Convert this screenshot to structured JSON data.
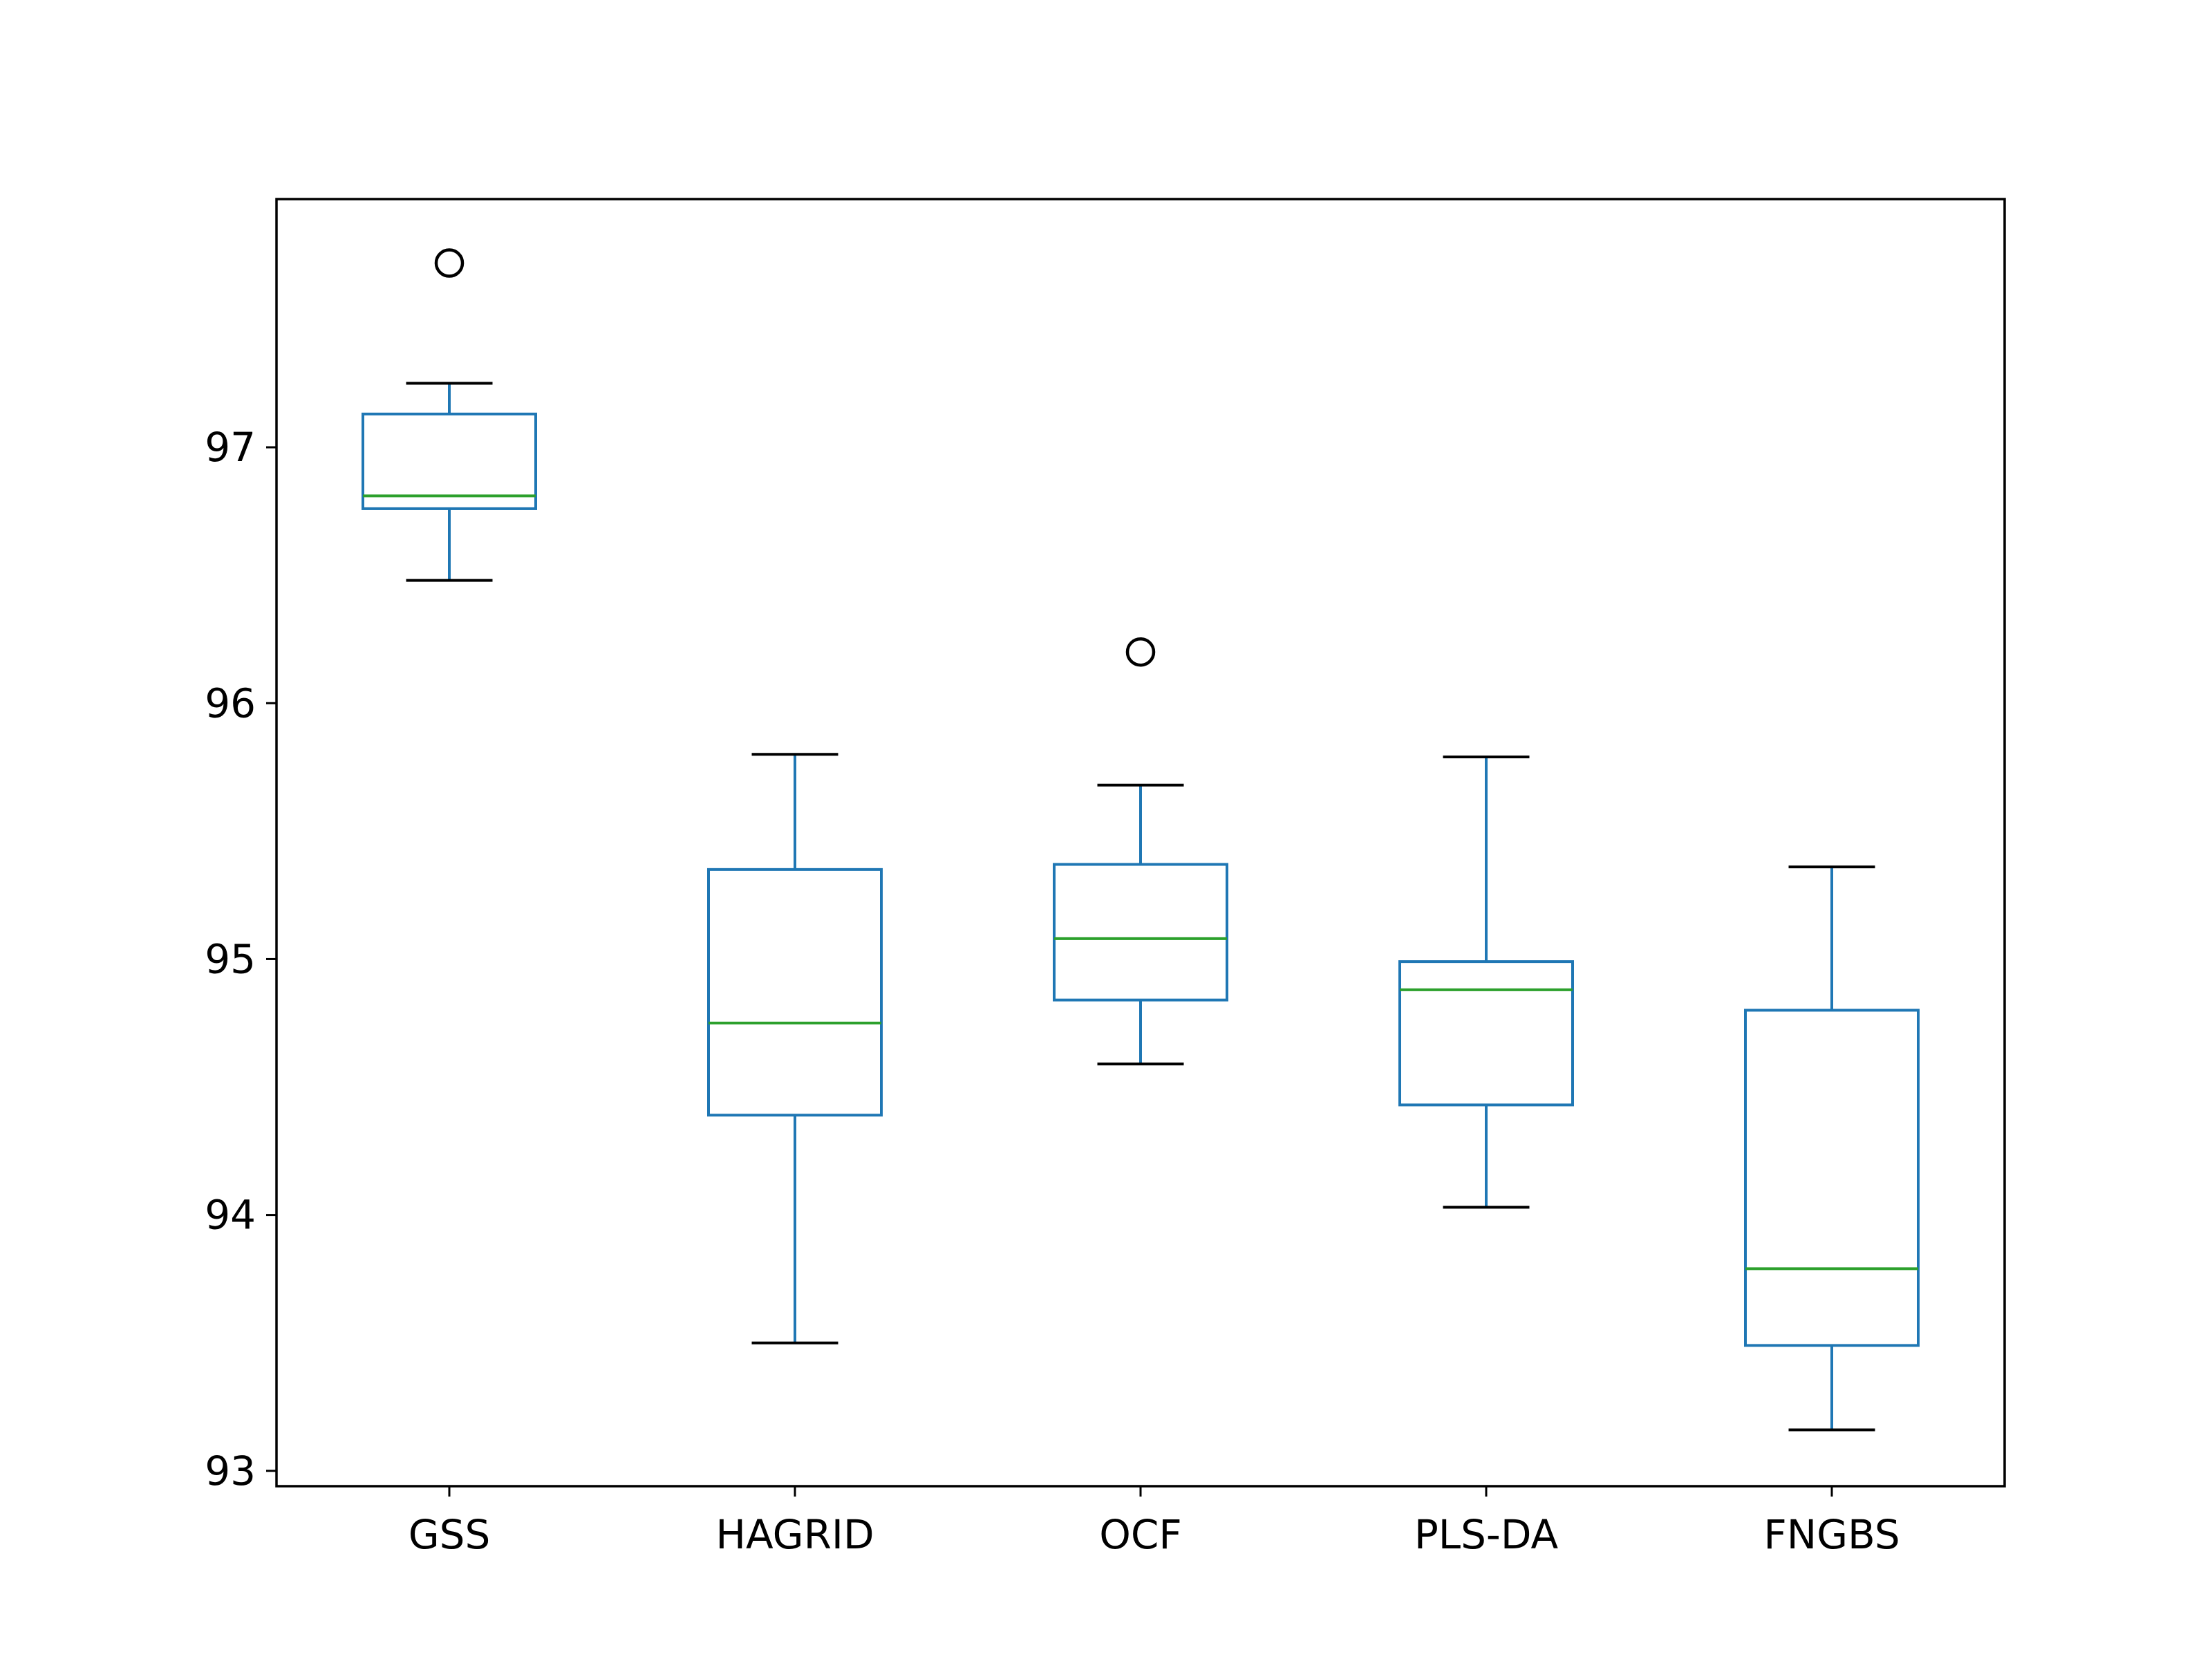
{
  "chart_data": {
    "type": "box",
    "title": "",
    "xlabel": "",
    "ylabel": "",
    "ylim": [
      92.94,
      97.97
    ],
    "yticks": [
      93,
      94,
      95,
      96,
      97
    ],
    "grid": false,
    "legend": "none",
    "categories": [
      "GSS",
      "HAGRID",
      "OCF",
      "PLS-DA",
      "FNGBS"
    ],
    "boxes": [
      {
        "label": "GSS",
        "whisker_low": 96.48,
        "q1": 96.76,
        "median": 96.81,
        "q3": 97.13,
        "whisker_high": 97.25,
        "outliers": [
          97.72
        ]
      },
      {
        "label": "HAGRID",
        "whisker_low": 93.5,
        "q1": 94.39,
        "median": 94.75,
        "q3": 95.35,
        "whisker_high": 95.8,
        "outliers": []
      },
      {
        "label": "OCF",
        "whisker_low": 94.59,
        "q1": 94.84,
        "median": 95.08,
        "q3": 95.37,
        "whisker_high": 95.68,
        "outliers": [
          96.2
        ]
      },
      {
        "label": "PLS-DA",
        "whisker_low": 94.03,
        "q1": 94.43,
        "median": 94.88,
        "q3": 94.99,
        "whisker_high": 95.79,
        "outliers": []
      },
      {
        "label": "FNGBS",
        "whisker_low": 93.16,
        "q1": 93.49,
        "median": 93.79,
        "q3": 94.8,
        "whisker_high": 95.36,
        "outliers": []
      }
    ],
    "colors": {
      "box": "#1f77b4",
      "median": "#2ca02c",
      "whisker_cap": "#000000",
      "outlier": "#000000",
      "axes": "#000000"
    }
  }
}
